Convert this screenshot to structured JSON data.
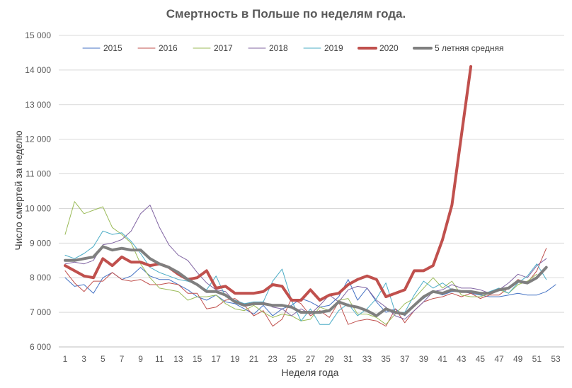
{
  "chart_data": {
    "type": "line",
    "title": "Смертность в Польше по неделям года.",
    "xlabel": "Неделя года",
    "ylabel": "Число смертей за неделю",
    "xlim": [
      1,
      53
    ],
    "ylim": [
      6000,
      15000
    ],
    "x_ticks": [
      "1",
      "3",
      "5",
      "7",
      "9",
      "11",
      "13",
      "15",
      "17",
      "19",
      "21",
      "23",
      "25",
      "27",
      "29",
      "31",
      "33",
      "35",
      "37",
      "39",
      "41",
      "43",
      "45",
      "47",
      "49",
      "51",
      "53"
    ],
    "y_ticks": [
      "6 000",
      "7 000",
      "8 000",
      "9 000",
      "10 000",
      "11 000",
      "12 000",
      "13 000",
      "14 000",
      "15 000"
    ],
    "grid": "horizontal",
    "legend_position": "top",
    "series": [
      {
        "name": "2015",
        "color": "#4472c4",
        "width": 1,
        "values": [
          8000,
          7750,
          7800,
          7550,
          8000,
          8150,
          7950,
          8050,
          8300,
          8050,
          7950,
          7950,
          7800,
          7650,
          7450,
          7350,
          7500,
          7300,
          7250,
          7100,
          6950,
          7200,
          6900,
          7100,
          7200,
          7400,
          7300,
          7150,
          7200,
          7450,
          7950,
          7350,
          7700,
          7300,
          7000,
          7100,
          6900,
          7200,
          7400,
          7600,
          7500,
          7600,
          7600,
          7550,
          7500,
          7450,
          7450,
          7500,
          7550,
          7500,
          7500,
          7600,
          7800
        ]
      },
      {
        "name": "2016",
        "color": "#c0504d",
        "width": 1,
        "values": [
          8200,
          7850,
          7600,
          7900,
          7900,
          8150,
          7950,
          7900,
          7950,
          7800,
          7800,
          7850,
          7800,
          7550,
          7550,
          7100,
          7150,
          7350,
          7400,
          7200,
          6900,
          7050,
          6600,
          6800,
          7400,
          7250,
          6900,
          7050,
          6850,
          7300,
          6650,
          6750,
          6800,
          6750,
          6600,
          7100,
          6700,
          7050,
          7300,
          7400,
          7450,
          7550,
          7450,
          7550,
          7400,
          7500,
          7500,
          7700,
          7950,
          7850,
          8200,
          8850
        ]
      },
      {
        "name": "2017",
        "color": "#9bbb59",
        "width": 1,
        "values": [
          9250,
          10200,
          9850,
          9950,
          10050,
          9450,
          9250,
          9000,
          8400,
          8000,
          7700,
          7650,
          7600,
          7350,
          7450,
          7450,
          7500,
          7250,
          7100,
          7050,
          7200,
          7000,
          6850,
          6950,
          6900,
          6750,
          6800,
          7150,
          7050,
          7350,
          7400,
          6950,
          6950,
          6850,
          6650,
          6950,
          7250,
          7400,
          7700,
          8000,
          7700,
          7900,
          7500,
          7450,
          7450,
          7550,
          7650,
          7550,
          7800,
          7900,
          8100
        ]
      },
      {
        "name": "2018",
        "color": "#8064a2",
        "width": 1,
        "values": [
          8400,
          8450,
          8400,
          8500,
          8950,
          9000,
          9100,
          9350,
          9850,
          10100,
          9450,
          8950,
          8650,
          8500,
          8150,
          7850,
          7650,
          7600,
          7300,
          7250,
          7250,
          7300,
          7150,
          7100,
          6900,
          7100,
          6950,
          7200,
          7500,
          7300,
          7650,
          7750,
          7700,
          7350,
          7150,
          6900,
          6800,
          7050,
          7300,
          7600,
          7650,
          7800,
          7700,
          7700,
          7650,
          7550,
          7650,
          7850,
          8100,
          8000,
          8350,
          8550
        ]
      },
      {
        "name": "2019",
        "color": "#4bacc6",
        "width": 1,
        "values": [
          8650,
          8550,
          8700,
          8900,
          9350,
          9250,
          9300,
          9050,
          8700,
          8300,
          8150,
          8050,
          7950,
          7900,
          7800,
          7650,
          8050,
          7450,
          7350,
          7250,
          7300,
          7300,
          7900,
          8250,
          7350,
          6750,
          7100,
          6650,
          6650,
          7050,
          7250,
          6900,
          7100,
          7400,
          7850,
          7000,
          7000,
          7500,
          7900,
          7700,
          7850,
          7650,
          7600,
          7600,
          7500,
          7600,
          7700,
          7550,
          7850,
          8050,
          8400,
          7950
        ]
      },
      {
        "name": "2020",
        "color": "#c0504d",
        "width": 4,
        "values": [
          8350,
          8200,
          8050,
          8000,
          8550,
          8350,
          8600,
          8450,
          8450,
          8350,
          8400,
          8300,
          8100,
          7950,
          8000,
          8200,
          7700,
          7750,
          7550,
          7550,
          7550,
          7600,
          7800,
          7750,
          7350,
          7350,
          7650,
          7350,
          7500,
          7550,
          7800,
          7950,
          8050,
          7950,
          7450,
          7550,
          7650,
          8200,
          8200,
          8350,
          9100,
          10100,
          12100,
          14100
        ]
      },
      {
        "name": "5 летняя средняя",
        "color": "#7f7f7f",
        "width": 4,
        "values": [
          8500,
          8500,
          8550,
          8600,
          8900,
          8800,
          8850,
          8800,
          8800,
          8550,
          8400,
          8300,
          8150,
          7950,
          7800,
          7600,
          7600,
          7500,
          7300,
          7200,
          7250,
          7250,
          7200,
          7200,
          7150,
          7000,
          7000,
          7000,
          7050,
          7300,
          7200,
          7150,
          7050,
          6900,
          7100,
          7000,
          6950,
          7200,
          7450,
          7600,
          7550,
          7650,
          7600,
          7600,
          7550,
          7550,
          7650,
          7700,
          7900,
          7850,
          8000,
          8300
        ]
      }
    ]
  }
}
